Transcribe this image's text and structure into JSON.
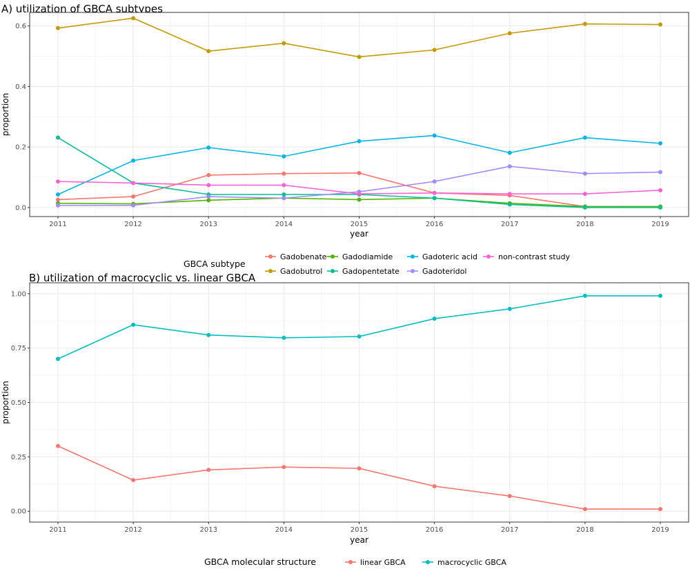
{
  "chart_data": [
    {
      "type": "line",
      "title": "A) utilization of GBCA subtypes",
      "xlabel": "year",
      "ylabel": "proportion",
      "x": [
        2011,
        2012,
        2013,
        2014,
        2015,
        2016,
        2017,
        2018,
        2019
      ],
      "xticks": [
        "2011",
        "2012",
        "2013",
        "2014",
        "2015",
        "2016",
        "2017",
        "2018",
        "2019"
      ],
      "yticks": [
        "0.0",
        "0.2",
        "0.4",
        "0.6"
      ],
      "ytick_values": [
        0,
        0.2,
        0.4,
        0.6
      ],
      "ylim": [
        -0.03,
        0.645
      ],
      "grid": true,
      "legend_title": "GBCA subtype",
      "legend_position": "bottom",
      "series": [
        {
          "name": "Gadobenate",
          "color": "#F8766D",
          "values": [
            0.026,
            0.036,
            0.107,
            0.112,
            0.114,
            0.048,
            0.04,
            0.003,
            0.003
          ]
        },
        {
          "name": "Gadobutrol",
          "color": "#C49A00",
          "values": [
            0.593,
            0.626,
            0.517,
            0.543,
            0.498,
            0.521,
            0.576,
            0.607,
            0.605
          ]
        },
        {
          "name": "Gadodiamide",
          "color": "#53B400",
          "values": [
            0.014,
            0.012,
            0.024,
            0.031,
            0.026,
            0.031,
            0.014,
            0.003,
            0.003
          ]
        },
        {
          "name": "Gadopentetate",
          "color": "#00C094",
          "values": [
            0.231,
            0.081,
            0.043,
            0.043,
            0.043,
            0.031,
            0.01,
            0.0,
            0.0
          ]
        },
        {
          "name": "Gadoteric acid",
          "color": "#00B6EB",
          "values": [
            0.043,
            0.155,
            0.198,
            0.169,
            0.219,
            0.238,
            0.181,
            0.231,
            0.212
          ]
        },
        {
          "name": "Gadoteridol",
          "color": "#A58AFF",
          "values": [
            0.007,
            0.007,
            0.036,
            0.031,
            0.052,
            0.086,
            0.136,
            0.112,
            0.117
          ]
        },
        {
          "name": "non-contrast study",
          "color": "#FB61D7",
          "values": [
            0.086,
            0.081,
            0.074,
            0.074,
            0.045,
            0.048,
            0.045,
            0.045,
            0.057
          ]
        }
      ]
    },
    {
      "type": "line",
      "title": "B) utilization of macrocyclic vs. linear GBCA",
      "xlabel": "year",
      "ylabel": "proportion",
      "x": [
        2011,
        2012,
        2013,
        2014,
        2015,
        2016,
        2017,
        2018,
        2019
      ],
      "xticks": [
        "2011",
        "2012",
        "2013",
        "2014",
        "2015",
        "2016",
        "2017",
        "2018",
        "2019"
      ],
      "yticks": [
        "0.00",
        "0.25",
        "0.50",
        "0.75",
        "1.00"
      ],
      "ytick_values": [
        0,
        0.25,
        0.5,
        0.75,
        1.0
      ],
      "ylim": [
        -0.05,
        1.05
      ],
      "grid": true,
      "legend_title": "GBCA molecular structure",
      "legend_position": "bottom",
      "series": [
        {
          "name": "linear GBCA",
          "color": "#F8766D",
          "values": [
            0.3,
            0.143,
            0.19,
            0.203,
            0.197,
            0.115,
            0.07,
            0.01,
            0.01
          ]
        },
        {
          "name": "macrocyclic GBCA",
          "color": "#00BFC4",
          "values": [
            0.7,
            0.857,
            0.81,
            0.797,
            0.803,
            0.885,
            0.93,
            0.99,
            0.99
          ]
        }
      ]
    }
  ]
}
